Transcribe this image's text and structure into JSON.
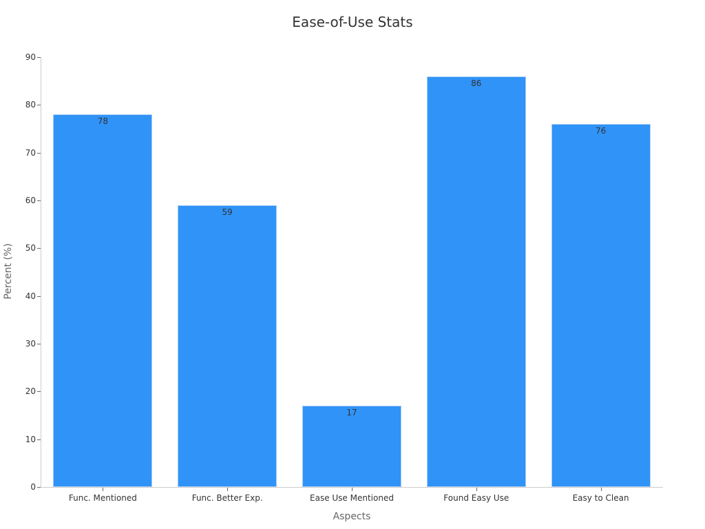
{
  "chart_data": {
    "type": "bar",
    "title": "Ease-of-Use Stats",
    "xlabel": "Aspects",
    "ylabel": "Percent (%)",
    "categories": [
      "Func. Mentioned",
      "Func. Better Exp.",
      "Ease Use Mentioned",
      "Found Easy Use",
      "Easy to Clean"
    ],
    "values": [
      78,
      59,
      17,
      86,
      76
    ],
    "ylim": [
      0,
      90
    ],
    "yticks": [
      0,
      10,
      20,
      30,
      40,
      50,
      60,
      70,
      80,
      90
    ],
    "grid": false,
    "legend": null,
    "bar_color": "#3093F7"
  }
}
